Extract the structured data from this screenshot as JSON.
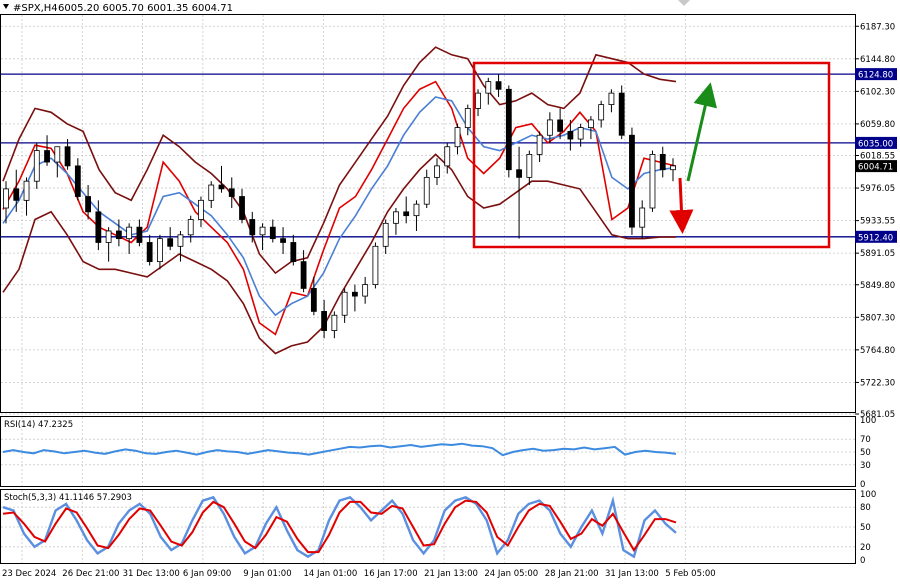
{
  "header": {
    "symbol": "#SPX,H4",
    "ohlc": "6005.20 6005.70 6001.35 6004.71"
  },
  "colors": {
    "grid": "#c9c9c9",
    "level_line": "#00008b",
    "bb": "#7a0f0f",
    "ema_fast": "#e00000",
    "ema_slow": "#4a7fd4",
    "candle": "#000000",
    "box": "#e00000",
    "arrow_up": "#1a8c1a",
    "arrow_down": "#e00000",
    "stoch_main": "#5b8fe0",
    "stoch_signal": "#e00000",
    "rsi": "#3c8be0"
  },
  "chart_data": [
    {
      "type": "line",
      "title": "#SPX,H4",
      "ylim": [
        5681.05,
        6202.0
      ],
      "price_labels": [
        "6187.30",
        "6144.80",
        "6102.30",
        "6059.80",
        "6018.55",
        "5976.05",
        "5933.55",
        "5891.05",
        "5849.80",
        "5807.30",
        "5764.80",
        "5722.30",
        "5681.05"
      ],
      "levels": [
        {
          "price": 6124.8,
          "label": "6124.80"
        },
        {
          "price": 6035.0,
          "label": "6035.00"
        },
        {
          "price": 5912.4,
          "label": "5912.40"
        }
      ],
      "current_price": {
        "price": 6004.71,
        "label": "6004.71"
      },
      "x_labels": [
        "23 Dec 2024",
        "26 Dec 21:00",
        "31 Dec 13:00",
        "6 Jan 09:00",
        "9 Jan 01:00",
        "14 Jan 01:00",
        "16 Jan 17:00",
        "21 Jan 13:00",
        "24 Jan 05:00",
        "28 Jan 21:00",
        "31 Jan 13:00",
        "5 Feb 05:00"
      ],
      "series": [
        {
          "values": [
            5948,
            5985,
            6032,
            6028,
            5995,
            5945,
            5925,
            5915,
            5905,
            5925,
            6010,
            5985,
            5945,
            5925,
            5905,
            5870,
            5800,
            5785,
            5840,
            5835,
            5895,
            5950,
            5965,
            6000,
            6040,
            6080,
            6105,
            6115,
            6080,
            6015,
            5995,
            6015,
            6055,
            6060,
            6035,
            6050,
            6075,
            6050,
            5935,
            5950,
            6015,
            6010,
            6004.71
          ]
        },
        {
          "values": [
            5930,
            5960,
            6005,
            6015,
            5995,
            5970,
            5945,
            5930,
            5915,
            5920,
            5965,
            5970,
            5955,
            5940,
            5915,
            5885,
            5835,
            5810,
            5825,
            5835,
            5865,
            5910,
            5940,
            5975,
            6005,
            6045,
            6075,
            6095,
            6090,
            6055,
            6030,
            6025,
            6035,
            6045,
            6040,
            6045,
            6055,
            6050,
            5990,
            5975,
            5995,
            6000,
            6003
          ]
        },
        {
          "values": [
            5985,
            6040,
            6080,
            6075,
            6060,
            6050,
            6000,
            5970,
            5960,
            6000,
            6045,
            6030,
            6010,
            5995,
            5975,
            5945,
            5890,
            5865,
            5880,
            5885,
            5930,
            5980,
            6010,
            6040,
            6070,
            6110,
            6140,
            6160,
            6150,
            6145,
            6110,
            6085,
            6090,
            6100,
            6085,
            6080,
            6100,
            6150,
            6145,
            6140,
            6125,
            6118,
            6115
          ]
        },
        {
          "values": [
            5840,
            5870,
            5935,
            5945,
            5915,
            5880,
            5870,
            5870,
            5865,
            5860,
            5875,
            5890,
            5880,
            5870,
            5855,
            5825,
            5780,
            5760,
            5770,
            5775,
            5795,
            5835,
            5870,
            5905,
            5945,
            5975,
            6000,
            6020,
            6000,
            5965,
            5950,
            5955,
            5970,
            5985,
            5985,
            5980,
            5975,
            5945,
            5915,
            5910,
            5910,
            5912,
            5912
          ]
        }
      ],
      "candles": [
        [
          5950,
          5985,
          5930,
          5975
        ],
        [
          5975,
          6000,
          5945,
          5960
        ],
        [
          5960,
          5990,
          5940,
          5985
        ],
        [
          5985,
          6035,
          5975,
          6025
        ],
        [
          6025,
          6045,
          6005,
          6010
        ],
        [
          6010,
          6030,
          5990,
          6030
        ],
        [
          6030,
          6040,
          6000,
          6005
        ],
        [
          6005,
          6015,
          5960,
          5965
        ],
        [
          5965,
          5980,
          5935,
          5945
        ],
        [
          5945,
          5960,
          5895,
          5905
        ],
        [
          5905,
          5925,
          5880,
          5920
        ],
        [
          5920,
          5935,
          5900,
          5910
        ],
        [
          5910,
          5930,
          5890,
          5925
        ],
        [
          5925,
          5935,
          5900,
          5905
        ],
        [
          5905,
          5915,
          5875,
          5880
        ],
        [
          5880,
          5915,
          5870,
          5910
        ],
        [
          5910,
          5925,
          5895,
          5900
        ],
        [
          5900,
          5920,
          5880,
          5915
        ],
        [
          5915,
          5940,
          5905,
          5935
        ],
        [
          5935,
          5965,
          5925,
          5960
        ],
        [
          5960,
          5985,
          5950,
          5980
        ],
        [
          5980,
          6005,
          5970,
          5975
        ],
        [
          5975,
          5990,
          5950,
          5965
        ],
        [
          5965,
          5975,
          5930,
          5935
        ],
        [
          5935,
          5945,
          5905,
          5915
        ],
        [
          5915,
          5930,
          5895,
          5925
        ],
        [
          5925,
          5935,
          5905,
          5910
        ],
        [
          5910,
          5925,
          5890,
          5905
        ],
        [
          5905,
          5915,
          5875,
          5880
        ],
        [
          5880,
          5895,
          5840,
          5845
        ],
        [
          5845,
          5860,
          5810,
          5815
        ],
        [
          5815,
          5830,
          5780,
          5790
        ],
        [
          5790,
          5815,
          5780,
          5810
        ],
        [
          5810,
          5845,
          5800,
          5840
        ],
        [
          5840,
          5850,
          5815,
          5835
        ],
        [
          5835,
          5860,
          5825,
          5850
        ],
        [
          5850,
          5905,
          5845,
          5900
        ],
        [
          5900,
          5935,
          5890,
          5930
        ],
        [
          5930,
          5950,
          5915,
          5945
        ],
        [
          5945,
          5965,
          5930,
          5940
        ],
        [
          5940,
          5960,
          5920,
          5955
        ],
        [
          5955,
          6000,
          5950,
          5990
        ],
        [
          5990,
          6015,
          5980,
          6005
        ],
        [
          6005,
          6035,
          5995,
          6030
        ],
        [
          6030,
          6060,
          6020,
          6055
        ],
        [
          6055,
          6085,
          6045,
          6080
        ],
        [
          6080,
          6105,
          6070,
          6100
        ],
        [
          6100,
          6120,
          6085,
          6115
        ],
        [
          6115,
          6125,
          6095,
          6105
        ],
        [
          6105,
          6110,
          5990,
          6000
        ],
        [
          6000,
          6030,
          5910,
          5990
        ],
        [
          5990,
          6025,
          5980,
          6020
        ],
        [
          6020,
          6050,
          6010,
          6045
        ],
        [
          6045,
          6075,
          6035,
          6065
        ],
        [
          6065,
          6080,
          6040,
          6050
        ],
        [
          6050,
          6065,
          6025,
          6040
        ],
        [
          6040,
          6060,
          6030,
          6055
        ],
        [
          6055,
          6070,
          6040,
          6065
        ],
        [
          6065,
          6090,
          6055,
          6085
        ],
        [
          6085,
          6105,
          6075,
          6100
        ],
        [
          6100,
          6110,
          6040,
          6045
        ],
        [
          6045,
          6055,
          5915,
          5925
        ],
        [
          5925,
          5960,
          5910,
          5950
        ],
        [
          5950,
          6025,
          5945,
          6020
        ],
        [
          6020,
          6030,
          5990,
          6000
        ],
        [
          6000,
          6015,
          5985,
          6005
        ]
      ]
    },
    {
      "type": "line",
      "title": "RSI(14) 47.2325",
      "ylim": [
        0,
        100
      ],
      "tick_labels": [
        "100",
        "70",
        "50",
        "30",
        "0"
      ],
      "series": [
        {
          "values": [
            50,
            53,
            50,
            48,
            53,
            51,
            48,
            50,
            52,
            49,
            47,
            51,
            54,
            52,
            48,
            47,
            50,
            52,
            49,
            46,
            50,
            53,
            51,
            50,
            47,
            50,
            53,
            51,
            49,
            48,
            46,
            49,
            52,
            55,
            58,
            57,
            59,
            60,
            57,
            59,
            61,
            58,
            60,
            62,
            61,
            63,
            60,
            59,
            56,
            45,
            50,
            53,
            55,
            52,
            53,
            55,
            54,
            57,
            54,
            56,
            58,
            46,
            50,
            52,
            50,
            49,
            47
          ]
        }
      ]
    },
    {
      "type": "line",
      "title": "Stoch(5,3,3) 41.1146 57.2903",
      "ylim": [
        0,
        100
      ],
      "tick_labels": [
        "100",
        "80",
        "50",
        "20",
        "0"
      ],
      "series": [
        {
          "values": [
            80,
            75,
            40,
            20,
            30,
            75,
            85,
            60,
            30,
            10,
            20,
            55,
            75,
            85,
            70,
            35,
            15,
            25,
            60,
            90,
            95,
            70,
            35,
            10,
            20,
            55,
            80,
            45,
            15,
            5,
            15,
            60,
            90,
            95,
            80,
            60,
            75,
            90,
            70,
            30,
            10,
            30,
            75,
            90,
            95,
            85,
            60,
            10,
            30,
            70,
            85,
            90,
            75,
            40,
            20,
            50,
            75,
            40,
            90,
            15,
            5,
            60,
            75,
            55,
            41
          ]
        },
        {
          "values": [
            70,
            72,
            55,
            35,
            28,
            55,
            78,
            72,
            48,
            22,
            18,
            38,
            62,
            78,
            75,
            52,
            28,
            22,
            42,
            72,
            88,
            80,
            55,
            28,
            18,
            38,
            65,
            58,
            32,
            12,
            12,
            38,
            72,
            88,
            88,
            72,
            70,
            82,
            78,
            50,
            22,
            24,
            55,
            80,
            90,
            88,
            72,
            35,
            22,
            50,
            75,
            85,
            82,
            58,
            32,
            40,
            62,
            52,
            70,
            42,
            15,
            38,
            62,
            62,
            57
          ]
        }
      ]
    }
  ]
}
